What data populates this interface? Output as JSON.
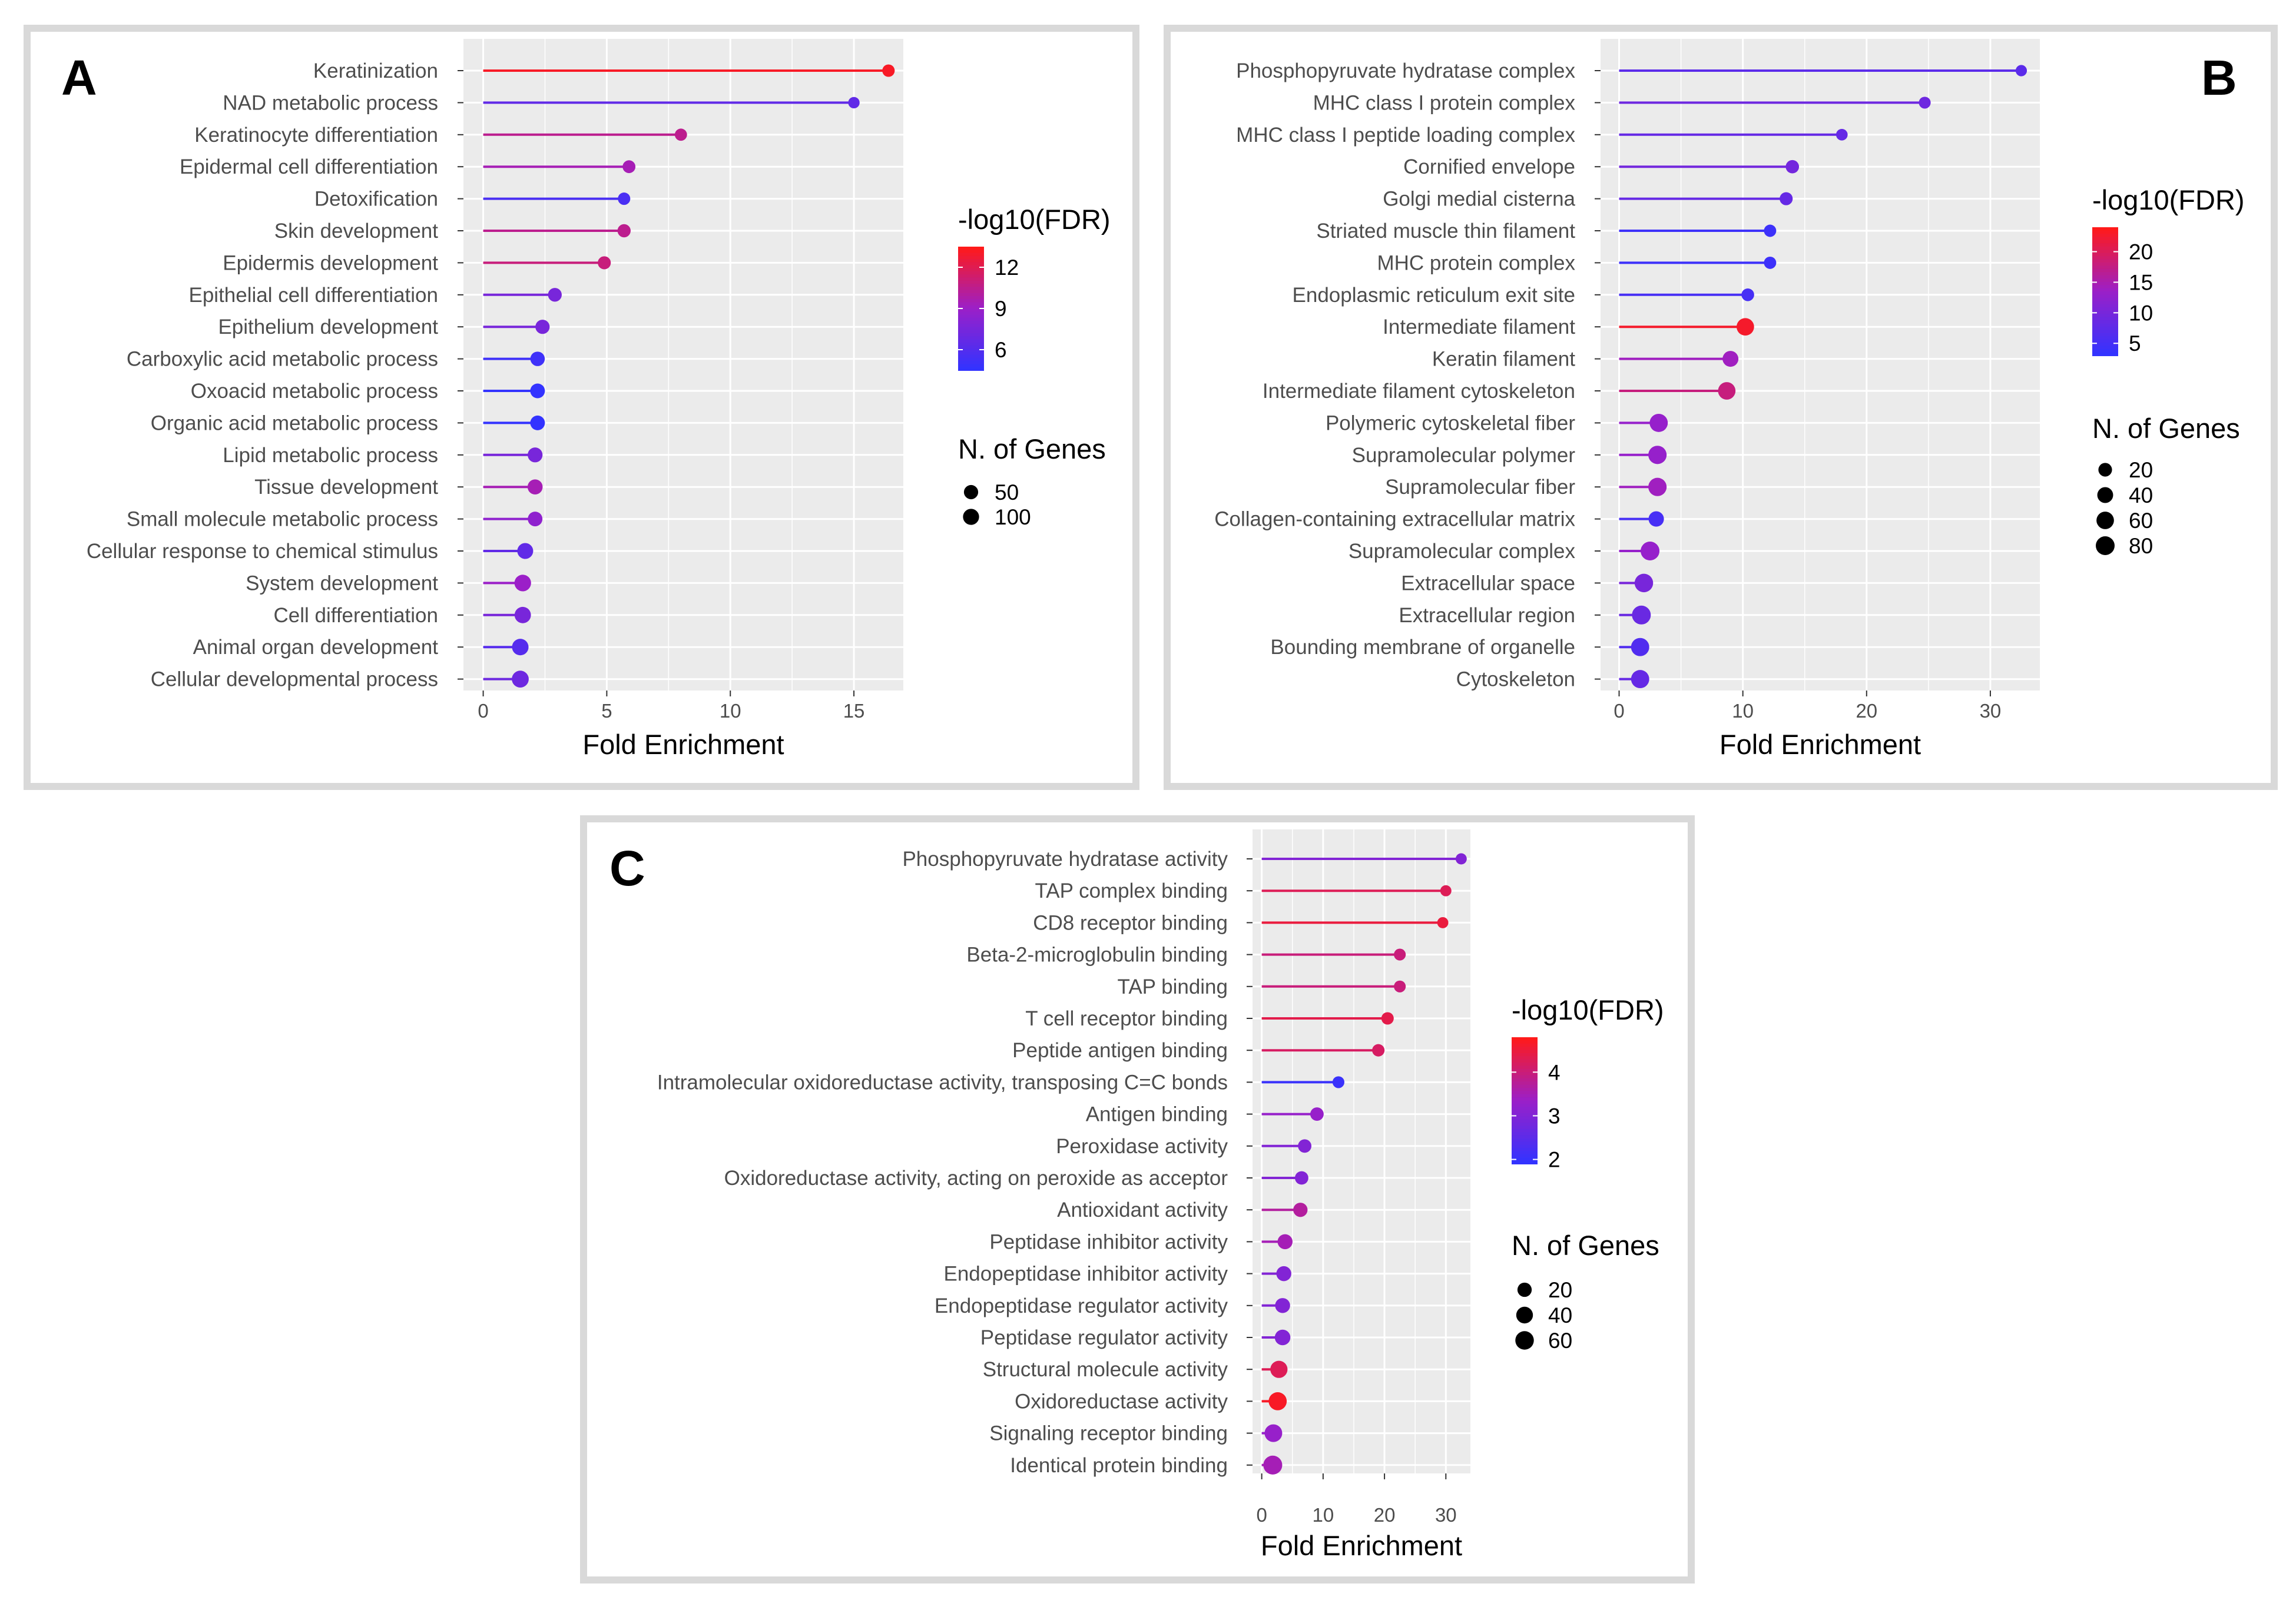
{
  "colors": {
    "low": "#3333ff",
    "mid": "#9b1fc8",
    "high": "#ff1a1a",
    "panel_bg": "#ebebeb",
    "grid": "#ffffff",
    "frame": "#d9d9d9"
  },
  "chart_data": [
    {
      "type": "lollipop",
      "panel_letter": "A",
      "xlabel": "Fold Enrichment",
      "ylabel": "",
      "xlim": [
        -0.8,
        17
      ],
      "xticks": [
        0,
        5,
        10,
        15
      ],
      "color_legend": {
        "title": "-log10(FDR)",
        "ticks": [
          12,
          9,
          6
        ],
        "range": [
          4.5,
          13.5
        ]
      },
      "size_legend": {
        "title": "N. of Genes",
        "values": [
          50,
          100
        ],
        "range": [
          10,
          160
        ]
      },
      "categories": [
        "Keratinization",
        "NAD metabolic process",
        "Keratinocyte differentiation",
        "Epidermal cell differentiation",
        "Detoxification",
        "Skin development",
        "Epidermis development",
        "Epithelial cell differentiation",
        "Epithelium development",
        "Carboxylic acid metabolic process",
        "Oxoacid metabolic process",
        "Organic acid metabolic process",
        "Lipid metabolic process",
        "Tissue development",
        "Small molecule metabolic process",
        "Cellular response to chemical stimulus",
        "System development",
        "Cell differentiation",
        "Animal organ development",
        "Cellular developmental process"
      ],
      "fold_enrichment": [
        16.4,
        15.0,
        8.0,
        5.9,
        5.7,
        5.7,
        4.9,
        2.9,
        2.4,
        2.2,
        2.2,
        2.2,
        2.1,
        2.1,
        2.1,
        1.7,
        1.6,
        1.6,
        1.5,
        1.5
      ],
      "neg_log10_fdr": [
        13.2,
        6.5,
        10.5,
        9.5,
        5.5,
        10.5,
        11.0,
        7.5,
        7.5,
        5.0,
        4.5,
        4.5,
        7.5,
        9.5,
        8.5,
        6.5,
        9.0,
        7.5,
        6.0,
        7.0
      ],
      "n_genes": [
        20,
        12,
        18,
        25,
        20,
        30,
        28,
        40,
        50,
        55,
        60,
        60,
        65,
        70,
        60,
        95,
        120,
        110,
        115,
        130
      ]
    },
    {
      "type": "lollipop",
      "panel_letter": "B",
      "xlabel": "Fold Enrichment",
      "ylabel": "",
      "xlim": [
        -1.5,
        34
      ],
      "xticks": [
        0,
        10,
        20,
        30
      ],
      "color_legend": {
        "title": "-log10(FDR)",
        "ticks": [
          20,
          15,
          10,
          5
        ],
        "range": [
          3,
          24
        ]
      },
      "size_legend": {
        "title": "N. of Genes",
        "values": [
          20,
          40,
          60,
          80
        ],
        "range": [
          5,
          100
        ]
      },
      "categories": [
        "Phosphopyruvate hydratase complex",
        "MHC class I protein complex",
        "MHC class I peptide loading complex",
        "Cornified envelope",
        "Golgi medial cisterna",
        "Striated muscle thin filament",
        "MHC protein complex",
        "Endoplasmic reticulum exit site",
        "Intermediate filament",
        "Keratin filament",
        "Intermediate filament cytoskeleton",
        "Polymeric cytoskeletal fiber",
        "Supramolecular polymer",
        "Supramolecular fiber",
        "Collagen-containing extracellular matrix",
        "Supramolecular complex",
        "Extracellular space",
        "Extracellular region",
        "Bounding membrane of organelle",
        "Cytoskeleton"
      ],
      "fold_enrichment": [
        32.5,
        24.7,
        18.0,
        14.0,
        13.5,
        12.2,
        12.2,
        10.4,
        10.2,
        9.0,
        8.7,
        3.2,
        3.1,
        3.1,
        3.0,
        2.5,
        2.0,
        1.8,
        1.7,
        1.7
      ],
      "neg_log10_fdr": [
        7.0,
        9.0,
        8.0,
        9.5,
        8.0,
        4.0,
        4.0,
        5.0,
        23.0,
        14.0,
        18.0,
        13.0,
        13.0,
        14.0,
        5.0,
        13.0,
        10.0,
        8.5,
        6.0,
        8.0
      ],
      "n_genes": [
        8,
        10,
        9,
        18,
        16,
        12,
        12,
        14,
        60,
        40,
        60,
        70,
        72,
        72,
        35,
        80,
        75,
        80,
        70,
        70
      ]
    },
    {
      "type": "lollipop",
      "panel_letter": "C",
      "xlabel": "Fold Enrichment",
      "ylabel": "",
      "xlim": [
        -1.5,
        34
      ],
      "xticks": [
        0,
        10,
        20,
        30
      ],
      "color_legend": {
        "title": "-log10(FDR)",
        "ticks": [
          4,
          3,
          2
        ],
        "range": [
          1.9,
          4.8
        ]
      },
      "size_legend": {
        "title": "N. of Genes",
        "values": [
          20,
          40,
          60
        ],
        "range": [
          4,
          80
        ]
      },
      "categories": [
        "Phosphopyruvate hydratase activity",
        "TAP complex binding",
        "CD8 receptor binding",
        "Beta-2-microglobulin binding",
        "TAP binding",
        "T cell receptor binding",
        "Peptide antigen binding",
        "Intramolecular oxidoreductase activity, transposing C=C bonds",
        "Antigen binding",
        "Peroxidase activity",
        "Oxidoreductase activity, acting on peroxide as acceptor",
        "Antioxidant activity",
        "Peptidase inhibitor activity",
        "Endopeptidase inhibitor activity",
        "Endopeptidase regulator activity",
        "Peptidase regulator activity",
        "Structural molecule activity",
        "Oxidoreductase activity",
        "Signaling receptor binding",
        "Identical protein binding"
      ],
      "fold_enrichment": [
        32.5,
        30.0,
        29.5,
        22.5,
        22.5,
        20.5,
        19.0,
        12.5,
        9.0,
        7.0,
        6.5,
        6.3,
        3.8,
        3.6,
        3.4,
        3.4,
        2.8,
        2.6,
        1.9,
        1.8
      ],
      "neg_log10_fdr": [
        3.0,
        4.3,
        4.5,
        4.0,
        4.0,
        4.4,
        4.2,
        2.0,
        3.3,
        3.0,
        3.0,
        3.7,
        3.5,
        3.0,
        3.0,
        3.0,
        4.3,
        4.7,
        3.3,
        3.5
      ],
      "n_genes": [
        6,
        6,
        6,
        8,
        8,
        10,
        10,
        8,
        15,
        15,
        15,
        20,
        25,
        25,
        25,
        30,
        45,
        55,
        50,
        65
      ]
    }
  ]
}
